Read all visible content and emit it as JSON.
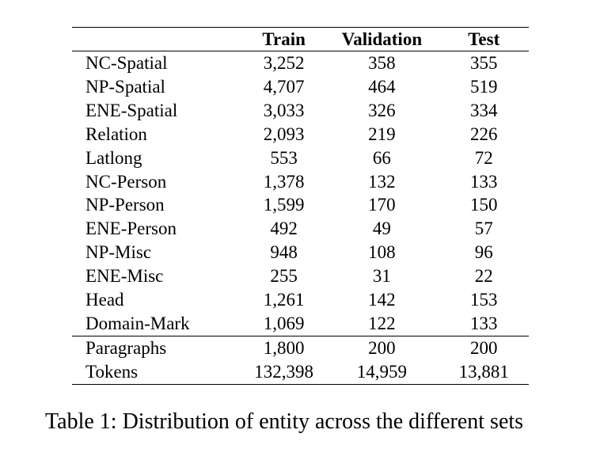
{
  "table": {
    "headers": [
      "",
      "Train",
      "Validation",
      "Test"
    ],
    "rows": [
      [
        "NC-Spatial",
        "3,252",
        "358",
        "355"
      ],
      [
        "NP-Spatial",
        "4,707",
        "464",
        "519"
      ],
      [
        "ENE-Spatial",
        "3,033",
        "326",
        "334"
      ],
      [
        "Relation",
        "2,093",
        "219",
        "226"
      ],
      [
        "Latlong",
        "553",
        "66",
        "72"
      ],
      [
        "NC-Person",
        "1,378",
        "132",
        "133"
      ],
      [
        "NP-Person",
        "1,599",
        "170",
        "150"
      ],
      [
        "ENE-Person",
        "492",
        "49",
        "57"
      ],
      [
        "NP-Misc",
        "948",
        "108",
        "96"
      ],
      [
        "ENE-Misc",
        "255",
        "31",
        "22"
      ],
      [
        "Head",
        "1,261",
        "142",
        "153"
      ],
      [
        "Domain-Mark",
        "1,069",
        "122",
        "133"
      ]
    ],
    "totals": [
      [
        "Paragraphs",
        "1,800",
        "200",
        "200"
      ],
      [
        "Tokens",
        "132,398",
        "14,959",
        "13,881"
      ]
    ]
  },
  "caption": "Table 1: Distribution of entity across the different sets"
}
